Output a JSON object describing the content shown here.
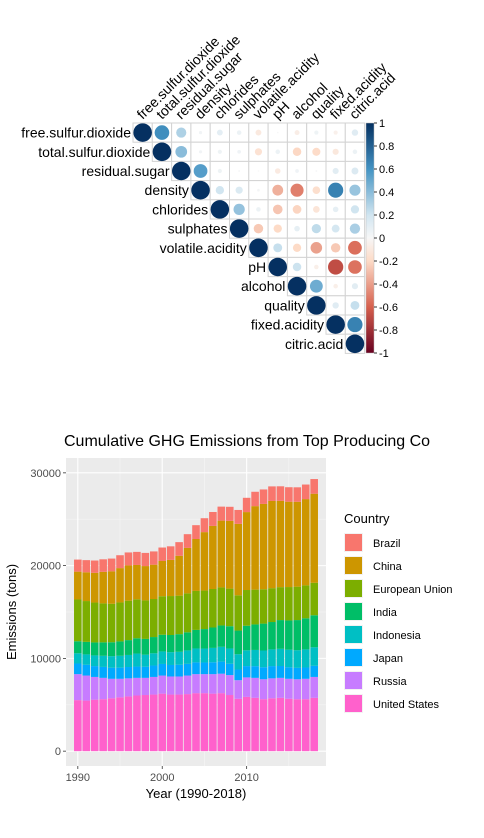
{
  "chart_data": [
    {
      "type": "heatmap",
      "variables": [
        "free.sulfur.dioxide",
        "total.sulfur.dioxide",
        "residual.sugar",
        "density",
        "chlorides",
        "sulphates",
        "volatile.acidity",
        "pH",
        "alcohol",
        "quality",
        "fixed.acidity",
        "citric.acid"
      ],
      "matrix": [
        [
          1,
          0.62,
          0.3,
          0.03,
          0.1,
          0.06,
          -0.1,
          0.0,
          -0.07,
          0.05,
          -0.05,
          0.12
        ],
        [
          null,
          1,
          0.4,
          0.03,
          0.05,
          0.04,
          -0.15,
          0.06,
          -0.21,
          -0.19,
          -0.11,
          0.06
        ],
        [
          null,
          null,
          1,
          0.55,
          0.05,
          0.01,
          0.0,
          -0.09,
          0.04,
          0.01,
          0.11,
          0.14
        ],
        [
          null,
          null,
          null,
          1,
          0.2,
          0.15,
          0.02,
          -0.34,
          -0.5,
          -0.17,
          0.67,
          0.36
        ],
        [
          null,
          null,
          null,
          null,
          1,
          0.37,
          0.06,
          -0.27,
          -0.22,
          -0.13,
          0.09,
          0.2
        ],
        [
          null,
          null,
          null,
          null,
          null,
          1,
          -0.26,
          -0.2,
          0.09,
          0.25,
          0.18,
          0.31
        ],
        [
          null,
          null,
          null,
          null,
          null,
          null,
          1,
          0.23,
          -0.2,
          -0.39,
          -0.26,
          -0.55
        ],
        [
          null,
          null,
          null,
          null,
          null,
          null,
          null,
          1,
          0.21,
          -0.06,
          -0.68,
          -0.54
        ],
        [
          null,
          null,
          null,
          null,
          null,
          null,
          null,
          null,
          1,
          0.48,
          -0.06,
          0.11
        ],
        [
          null,
          null,
          null,
          null,
          null,
          null,
          null,
          null,
          null,
          1,
          0.12,
          0.23
        ],
        [
          null,
          null,
          null,
          null,
          null,
          null,
          null,
          null,
          null,
          null,
          1,
          0.67
        ],
        [
          null,
          null,
          null,
          null,
          null,
          null,
          null,
          null,
          null,
          null,
          null,
          1
        ]
      ],
      "colorbar_ticks": [
        "1",
        "0.8",
        "0.6",
        "0.4",
        "0.2",
        "0",
        "-0.2",
        "-0.4",
        "-0.6",
        "-0.8",
        "-1"
      ],
      "colorbar_range": [
        -1,
        1
      ],
      "colors": {
        "positive": "#053061",
        "neutral": "#f7f7f7",
        "negative": "#67001f"
      }
    },
    {
      "type": "bar",
      "stacked": true,
      "title": "Cumulative GHG Emissions from Top Producing Co",
      "xlabel": "Year (1990-2018)",
      "ylabel": "Emissions (tons)",
      "x": [
        1990,
        1991,
        1992,
        1993,
        1994,
        1995,
        1996,
        1997,
        1998,
        1999,
        2000,
        2001,
        2002,
        2003,
        2004,
        2005,
        2006,
        2007,
        2008,
        2009,
        2010,
        2011,
        2012,
        2013,
        2014,
        2015,
        2016,
        2017,
        2018
      ],
      "xticks": [
        "1990",
        "2000",
        "2010"
      ],
      "yticks": [
        "0",
        "10000",
        "20000",
        "30000"
      ],
      "ylim": [
        0,
        31000
      ],
      "legend_title": "Country",
      "legend_position": "right",
      "series": [
        {
          "name": "United States",
          "color": "#FF61CC",
          "values": [
            5500,
            5450,
            5550,
            5600,
            5700,
            5800,
            5900,
            6000,
            6050,
            6100,
            6200,
            6100,
            6100,
            6150,
            6250,
            6250,
            6200,
            6250,
            6050,
            5650,
            5850,
            5750,
            5600,
            5700,
            5750,
            5650,
            5600,
            5600,
            5750
          ]
        },
        {
          "name": "Russia",
          "color": "#C77CFF",
          "values": [
            2800,
            2700,
            2450,
            2300,
            2100,
            2000,
            1950,
            1900,
            1850,
            1900,
            1950,
            1950,
            1950,
            2000,
            2050,
            2050,
            2100,
            2100,
            2150,
            2000,
            2100,
            2150,
            2150,
            2150,
            2150,
            2150,
            2150,
            2200,
            2250
          ]
        },
        {
          "name": "Japan",
          "color": "#00A9FF",
          "values": [
            1150,
            1160,
            1170,
            1180,
            1190,
            1200,
            1220,
            1220,
            1200,
            1230,
            1250,
            1240,
            1260,
            1260,
            1270,
            1260,
            1280,
            1300,
            1220,
            1150,
            1220,
            1260,
            1300,
            1320,
            1280,
            1240,
            1230,
            1220,
            1200
          ]
        },
        {
          "name": "Indonesia",
          "color": "#00BFC4",
          "values": [
            1100,
            1120,
            1150,
            1200,
            1250,
            1280,
            1300,
            1400,
            1300,
            1320,
            1350,
            1380,
            1400,
            1450,
            1500,
            1500,
            1550,
            1600,
            1650,
            1650,
            1700,
            1750,
            1800,
            1800,
            1850,
            1900,
            1900,
            1950,
            2000
          ]
        },
        {
          "name": "India",
          "color": "#00BE67",
          "values": [
            1300,
            1350,
            1400,
            1450,
            1500,
            1550,
            1600,
            1650,
            1700,
            1750,
            1800,
            1850,
            1900,
            1950,
            2000,
            2100,
            2200,
            2300,
            2400,
            2550,
            2650,
            2750,
            2900,
            2950,
            3100,
            3150,
            3250,
            3350,
            3450
          ]
        },
        {
          "name": "European Union",
          "color": "#7CAE00",
          "values": [
            4500,
            4400,
            4300,
            4200,
            4150,
            4200,
            4250,
            4200,
            4150,
            4100,
            4150,
            4200,
            4150,
            4200,
            4200,
            4150,
            4150,
            4100,
            4050,
            3800,
            3850,
            3750,
            3700,
            3650,
            3550,
            3600,
            3600,
            3550,
            3500
          ]
        },
        {
          "name": "China",
          "color": "#CD9600",
          "values": [
            3000,
            3100,
            3200,
            3400,
            3500,
            3700,
            3800,
            3700,
            3700,
            3700,
            3800,
            3900,
            4300,
            4900,
            5600,
            6300,
            6800,
            7200,
            7300,
            7700,
            8400,
            9000,
            9200,
            9400,
            9300,
            9200,
            9150,
            9300,
            9600
          ]
        },
        {
          "name": "Brazil",
          "color": "#F8766D",
          "values": [
            1300,
            1310,
            1330,
            1350,
            1370,
            1390,
            1400,
            1410,
            1420,
            1430,
            1450,
            1460,
            1470,
            1480,
            1490,
            1500,
            1500,
            1510,
            1520,
            1500,
            1540,
            1550,
            1560,
            1570,
            1570,
            1560,
            1560,
            1570,
            1580
          ]
        }
      ],
      "legend_order": [
        "Brazil",
        "China",
        "European Union",
        "India",
        "Indonesia",
        "Japan",
        "Russia",
        "United States"
      ]
    }
  ]
}
